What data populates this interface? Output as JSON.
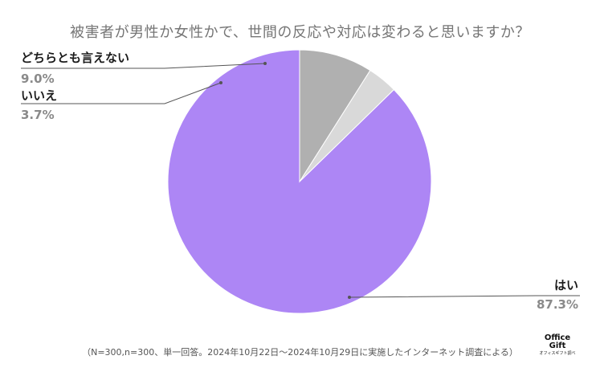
{
  "chart_data": {
    "type": "pie",
    "title": "被害者が男性か女性かで、世間の反応や対応は変わると思いますか？",
    "slices": [
      {
        "label": "はい",
        "value": 87.3,
        "display": "87.3%",
        "color": "#ad86f5"
      },
      {
        "label": "いいえ",
        "value": 3.7,
        "display": "3.7%",
        "color": "#d9d9d9"
      },
      {
        "label": "どちらとも言えない",
        "value": 9.0,
        "display": "9.0%",
        "color": "#b0b0b0"
      }
    ],
    "start": "12 o'clock",
    "direction": "counterclockwise"
  },
  "footnote": "（N=300,n=300、単一回答。2024年10月22日～2024年10月29日に実施したインターネット調査による）",
  "logo": {
    "line1": "Office",
    "line2": "Gift",
    "line3": "オフィスギフト調べ"
  }
}
